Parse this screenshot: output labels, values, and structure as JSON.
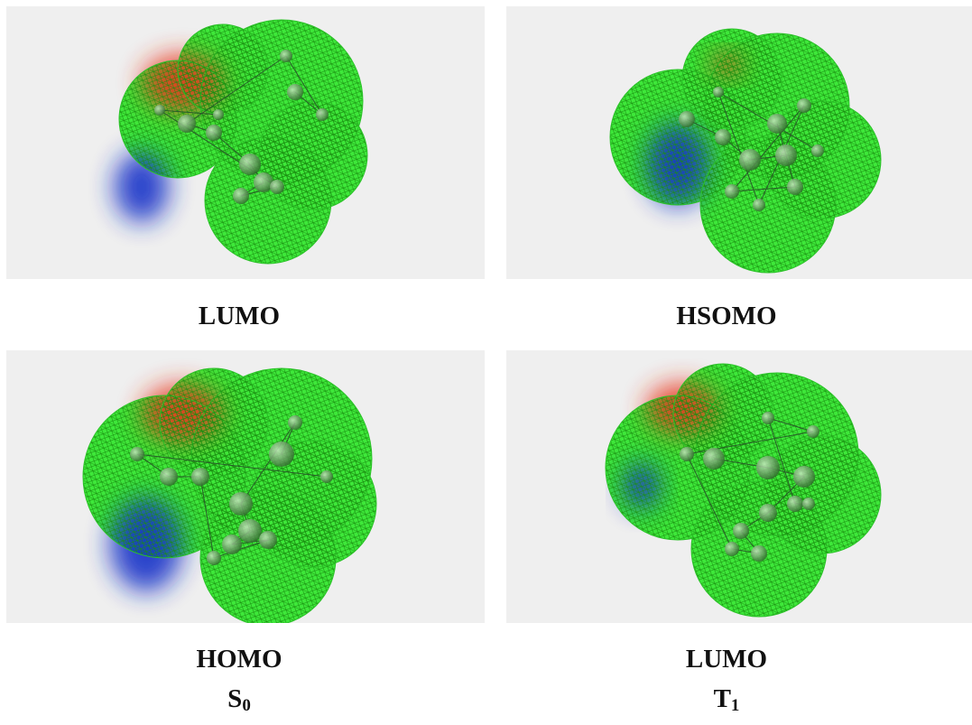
{
  "panels": [
    {
      "label": "LUMO"
    },
    {
      "label": "HSOMO"
    },
    {
      "label": "HOMO"
    },
    {
      "label": "LUMO"
    }
  ],
  "columns": [
    {
      "main": "S",
      "sub": "0"
    },
    {
      "main": "T",
      "sub": "1"
    }
  ]
}
